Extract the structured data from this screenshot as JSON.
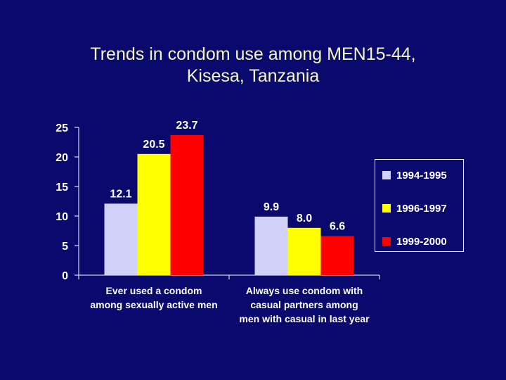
{
  "title_line1": "Trends in condom use among MEN15-44,",
  "title_line2": "Kisesa, Tanzania",
  "chart_data": {
    "type": "bar",
    "title": "Trends in condom use among MEN15-44, Kisesa, Tanzania",
    "categories": [
      [
        "Ever used a condom",
        "among sexually active men"
      ],
      [
        "Always use condom with",
        "casual partners among",
        "men with casual in last year"
      ]
    ],
    "series": [
      {
        "name": "1994-1995",
        "color": "#d0d0f8",
        "values": [
          12.1,
          9.9
        ],
        "labels": [
          "12.1",
          "9.9"
        ]
      },
      {
        "name": "1996-1997",
        "color": "#ffff00",
        "values": [
          20.5,
          8.0
        ],
        "labels": [
          "20.5",
          "8.0"
        ]
      },
      {
        "name": "1999-2000",
        "color": "#ff0000",
        "values": [
          23.7,
          6.6
        ],
        "labels": [
          "23.7",
          "6.6"
        ]
      }
    ],
    "yticks": [
      "0",
      "5",
      "10",
      "15",
      "20",
      "25"
    ],
    "ylim": [
      0,
      25
    ],
    "grid": false,
    "legend_position": "right"
  }
}
